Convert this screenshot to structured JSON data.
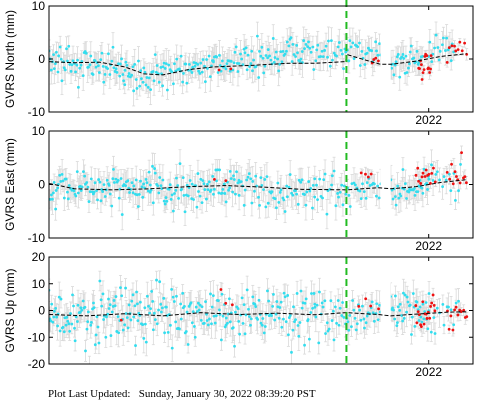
{
  "chart_data": [
    {
      "type": "scatter",
      "ylabel": "GVRS North (mm)",
      "ylim": [
        -10,
        10
      ],
      "yticks": [
        -10,
        0,
        10
      ],
      "xlim": [
        2019.0,
        2022.35
      ],
      "xticks": [
        {
          "value": 2022.0,
          "label": "2022"
        }
      ],
      "event_line": 2021.35,
      "gap": [
        2021.62,
        2021.7
      ],
      "series": [
        {
          "role": "trend",
          "color": "#000000",
          "style": "dashed",
          "x": [
            2019.0,
            2019.2,
            2019.4,
            2019.6,
            2019.75,
            2019.9,
            2020.1,
            2020.3,
            2020.6,
            2020.9,
            2021.1,
            2021.34,
            2021.36,
            2021.5,
            2021.62,
            2021.7,
            2021.9,
            2022.1,
            2022.3
          ],
          "y": [
            -0.5,
            -0.7,
            -0.6,
            -1.5,
            -2.8,
            -3.0,
            -2.0,
            -1.5,
            -1.2,
            -0.8,
            -0.8,
            -0.5,
            0.8,
            -0.2,
            -1.0,
            -1.0,
            -0.4,
            0.5,
            1.0
          ]
        },
        {
          "role": "observations",
          "color": "#33ddee",
          "segments": [
            {
              "x0": 2019.0,
              "x1": 2019.6,
              "y0": -0.8,
              "y1": -1.2,
              "scatter": 1.6,
              "n": 70
            },
            {
              "x0": 2019.6,
              "x1": 2019.9,
              "y0": -2.5,
              "y1": -3.0,
              "scatter": 1.6,
              "n": 35
            },
            {
              "x0": 2019.9,
              "x1": 2020.3,
              "y0": -2.6,
              "y1": -1.4,
              "scatter": 1.5,
              "n": 45
            },
            {
              "x0": 2020.3,
              "x1": 2021.0,
              "y0": -1.2,
              "y1": 1.0,
              "scatter": 1.6,
              "n": 80
            },
            {
              "x0": 2021.0,
              "x1": 2021.62,
              "y0": 1.0,
              "y1": 1.6,
              "scatter": 1.6,
              "n": 60
            },
            {
              "x0": 2021.7,
              "x1": 2021.95,
              "y0": -0.6,
              "y1": 0.2,
              "scatter": 1.4,
              "n": 30
            },
            {
              "x0": 2022.0,
              "x1": 2022.2,
              "y0": 1.5,
              "y1": 2.5,
              "scatter": 1.4,
              "n": 18
            }
          ]
        },
        {
          "role": "rapid",
          "color": "#ee1111",
          "segments": [
            {
              "x0": 2020.35,
              "x1": 2020.45,
              "y0": -1.5,
              "y1": -1.5,
              "scatter": 0.6,
              "n": 2
            },
            {
              "x0": 2021.55,
              "x1": 2021.6,
              "y0": 0.0,
              "y1": 0.0,
              "scatter": 0.6,
              "n": 4
            },
            {
              "x0": 2021.92,
              "x1": 2022.02,
              "y0": -1.5,
              "y1": -0.8,
              "scatter": 1.4,
              "n": 15
            },
            {
              "x0": 2022.15,
              "x1": 2022.3,
              "y0": 1.5,
              "y1": 1.8,
              "scatter": 1.0,
              "n": 10
            }
          ]
        }
      ]
    },
    {
      "type": "scatter",
      "ylabel": "GVRS East (mm)",
      "ylim": [
        -10,
        10
      ],
      "yticks": [
        -10,
        0,
        10
      ],
      "xlim": [
        2019.0,
        2022.35
      ],
      "xticks": [
        {
          "value": 2022.0,
          "label": "2022"
        }
      ],
      "event_line": 2021.35,
      "gap": [
        2021.62,
        2021.7
      ],
      "series": [
        {
          "role": "trend",
          "color": "#000000",
          "style": "dashed",
          "x": [
            2019.0,
            2019.2,
            2019.5,
            2019.8,
            2020.1,
            2020.4,
            2020.7,
            2021.0,
            2021.35,
            2021.6,
            2021.7,
            2021.9,
            2022.1,
            2022.3
          ],
          "y": [
            0.2,
            -0.8,
            -1.0,
            -0.8,
            -0.4,
            -0.2,
            -0.5,
            -0.9,
            -1.0,
            -0.6,
            -0.8,
            -0.4,
            0.4,
            0.9
          ]
        },
        {
          "role": "observations",
          "color": "#33ddee",
          "segments": [
            {
              "x0": 2019.0,
              "x1": 2019.8,
              "y0": -0.5,
              "y1": -1.0,
              "scatter": 1.8,
              "n": 95
            },
            {
              "x0": 2019.8,
              "x1": 2020.5,
              "y0": -0.8,
              "y1": 0.2,
              "scatter": 1.8,
              "n": 85
            },
            {
              "x0": 2020.5,
              "x1": 2021.1,
              "y0": -0.6,
              "y1": -1.5,
              "scatter": 1.8,
              "n": 60
            },
            {
              "x0": 2021.1,
              "x1": 2021.62,
              "y0": -1.5,
              "y1": -0.6,
              "scatter": 1.6,
              "n": 45
            },
            {
              "x0": 2021.7,
              "x1": 2022.0,
              "y0": -0.8,
              "y1": -0.3,
              "scatter": 1.6,
              "n": 35
            },
            {
              "x0": 2022.0,
              "x1": 2022.25,
              "y0": 0.5,
              "y1": 0.8,
              "scatter": 1.4,
              "n": 15
            }
          ]
        },
        {
          "role": "rapid",
          "color": "#ee1111",
          "segments": [
            {
              "x0": 2020.3,
              "x1": 2020.4,
              "y0": 1.0,
              "y1": 1.0,
              "scatter": 0.5,
              "n": 2
            },
            {
              "x0": 2021.47,
              "x1": 2021.55,
              "y0": 2.0,
              "y1": 2.0,
              "scatter": 1.5,
              "n": 4
            },
            {
              "x0": 2021.9,
              "x1": 2022.05,
              "y0": 1.4,
              "y1": 1.8,
              "scatter": 1.3,
              "n": 14
            },
            {
              "x0": 2022.15,
              "x1": 2022.3,
              "y0": 1.8,
              "y1": 2.3,
              "scatter": 1.3,
              "n": 12
            }
          ]
        }
      ]
    },
    {
      "type": "scatter",
      "ylabel": "GVRS Up (mm)",
      "ylim": [
        -20,
        20
      ],
      "yticks": [
        -20,
        -10,
        0,
        10,
        20
      ],
      "xlim": [
        2019.0,
        2022.35
      ],
      "xticks": [
        {
          "value": 2022.0,
          "label": "2022"
        }
      ],
      "event_line": 2021.35,
      "gap": [
        2021.62,
        2021.7
      ],
      "series": [
        {
          "role": "trend",
          "color": "#000000",
          "style": "dashed",
          "x": [
            2019.0,
            2019.3,
            2019.6,
            2019.9,
            2020.2,
            2020.5,
            2020.8,
            2021.1,
            2021.35,
            2021.6,
            2021.7,
            2021.95,
            2022.15,
            2022.3
          ],
          "y": [
            -1.5,
            -2.0,
            -1.2,
            -2.0,
            -0.8,
            -1.5,
            -1.0,
            -1.6,
            -0.8,
            -1.5,
            -2.0,
            -1.2,
            -0.6,
            -0.5
          ]
        },
        {
          "role": "observations",
          "color": "#33ddee",
          "segments": [
            {
              "x0": 2019.0,
              "x1": 2019.7,
              "y0": -1.5,
              "y1": -2.0,
              "scatter": 5.0,
              "n": 95
            },
            {
              "x0": 2019.7,
              "x1": 2020.4,
              "y0": -1.8,
              "y1": -1.0,
              "scatter": 5.0,
              "n": 90
            },
            {
              "x0": 2020.4,
              "x1": 2021.1,
              "y0": -1.2,
              "y1": -1.4,
              "scatter": 5.0,
              "n": 85
            },
            {
              "x0": 2021.1,
              "x1": 2021.62,
              "y0": -1.0,
              "y1": -1.2,
              "scatter": 4.5,
              "n": 55
            },
            {
              "x0": 2021.7,
              "x1": 2022.0,
              "y0": -2.0,
              "y1": -1.0,
              "scatter": 4.5,
              "n": 40
            },
            {
              "x0": 2022.0,
              "x1": 2022.25,
              "y0": -1.0,
              "y1": 0.0,
              "scatter": 4.0,
              "n": 15
            }
          ]
        },
        {
          "role": "rapid",
          "color": "#ee1111",
          "segments": [
            {
              "x0": 2019.55,
              "x1": 2019.6,
              "y0": -3.0,
              "y1": -3.0,
              "scatter": 1.0,
              "n": 1
            },
            {
              "x0": 2020.35,
              "x1": 2020.45,
              "y0": 4.0,
              "y1": 4.0,
              "scatter": 3.0,
              "n": 3
            },
            {
              "x0": 2021.45,
              "x1": 2021.6,
              "y0": 2.0,
              "y1": 2.0,
              "scatter": 4.0,
              "n": 4
            },
            {
              "x0": 2021.9,
              "x1": 2022.05,
              "y0": -0.5,
              "y1": 0.0,
              "scatter": 3.5,
              "n": 18
            },
            {
              "x0": 2022.15,
              "x1": 2022.3,
              "y0": -1.0,
              "y1": 0.0,
              "scatter": 3.5,
              "n": 12
            }
          ]
        }
      ]
    }
  ],
  "colors": {
    "error_bar": "#d9d9d9",
    "event_line": "#22bb22",
    "axis": "#000000"
  },
  "footer": {
    "label": "Plot Last Updated:",
    "timestamp": "Sunday, January 30, 2022 08:39:20 PST"
  }
}
